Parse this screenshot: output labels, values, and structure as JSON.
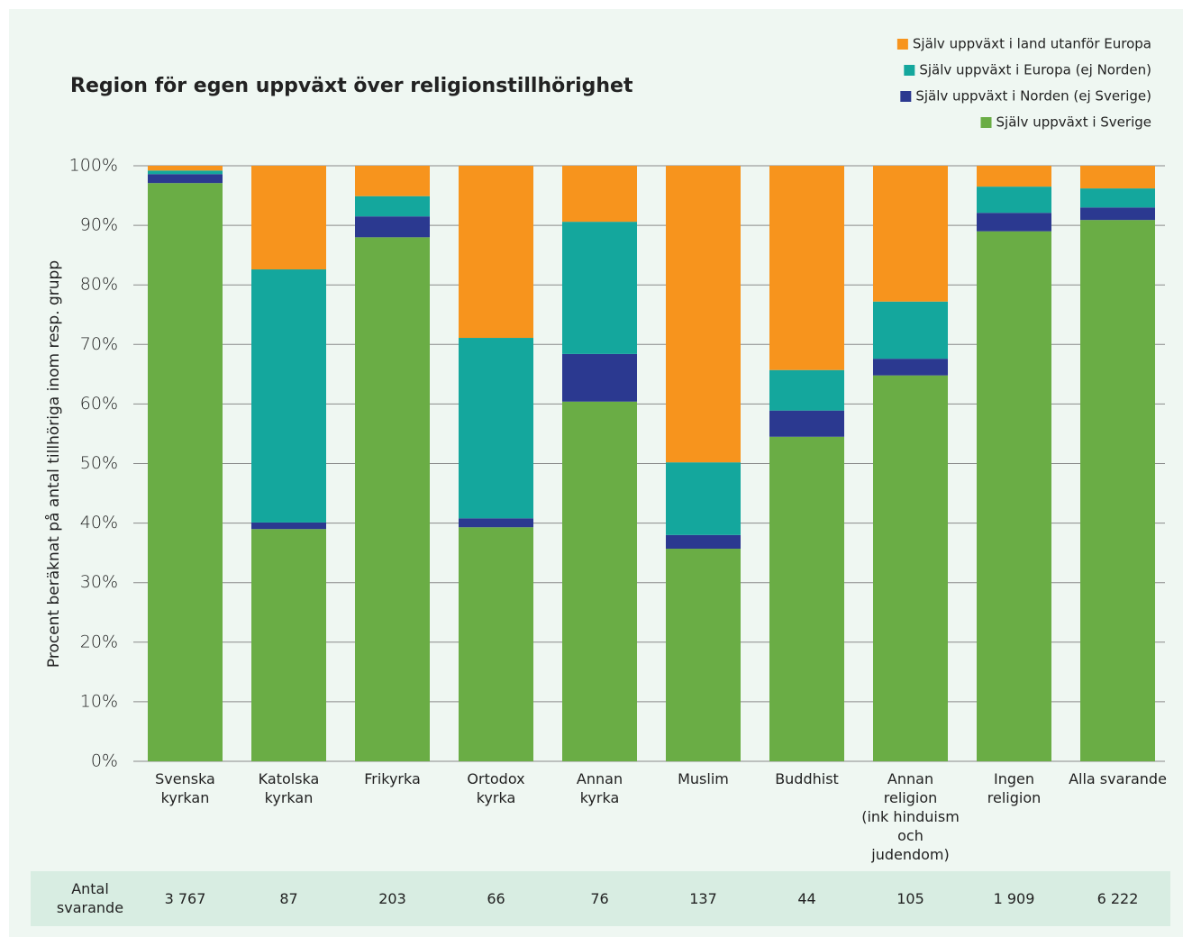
{
  "chart_data": {
    "type": "stacked_bar",
    "title": "Region för egen uppväxt över religionstillhörighet",
    "ylabel": "Procent beräknat på antal tillhöriga inom resp. grupp",
    "categories": [
      "Svenska\nkyrkan",
      "Katolska\nkyrkan",
      "Frikyrka",
      "Ortodox\nkyrka",
      "Annan\nkyrka",
      "Muslim",
      "Buddhist",
      "Annan\nreligion\n(ink hinduism\noch judendom)",
      "Ingen\nreligion",
      "Alla svarande"
    ],
    "series": [
      {
        "name": "Själv uppväxt i Sverige",
        "color": "#6aad45",
        "values": [
          97.1,
          39.0,
          88.0,
          39.3,
          60.4,
          35.7,
          54.5,
          64.8,
          89.0,
          90.9
        ]
      },
      {
        "name": "Själv uppväxt i Norden (ej Sverige)",
        "color": "#2b3990",
        "values": [
          1.5,
          1.1,
          3.5,
          1.5,
          8.0,
          2.3,
          4.4,
          2.8,
          3.1,
          2.1
        ]
      },
      {
        "name": "Själv uppväxt i Europa (ej Norden)",
        "color": "#14a79d",
        "values": [
          0.6,
          42.5,
          3.4,
          30.3,
          22.2,
          12.2,
          6.8,
          9.6,
          4.4,
          3.2
        ]
      },
      {
        "name": "Själv uppväxt i land utanför Europa",
        "color": "#f7941d",
        "values": [
          0.8,
          17.4,
          5.1,
          28.9,
          9.4,
          49.8,
          34.3,
          22.8,
          3.5,
          3.8
        ]
      }
    ],
    "ylim": [
      0,
      100
    ],
    "yticks": [
      {
        "value": 0,
        "label": "0%"
      },
      {
        "value": 10,
        "label": "10%"
      },
      {
        "value": 20,
        "label": "20%"
      },
      {
        "value": 30,
        "label": "30%"
      },
      {
        "value": 40,
        "label": "40%"
      },
      {
        "value": 50,
        "label": "50%"
      },
      {
        "value": 60,
        "label": "60%"
      },
      {
        "value": 70,
        "label": "70%"
      },
      {
        "value": 80,
        "label": "80%"
      },
      {
        "value": 90,
        "label": "90%"
      },
      {
        "value": 100,
        "label": "100%"
      }
    ],
    "grid": true,
    "legend": "top-right",
    "respondents": {
      "label": "Antal\nsvarande",
      "values": [
        3767,
        87,
        203,
        66,
        76,
        137,
        44,
        105,
        1909,
        6222
      ],
      "value_labels": [
        "3 767",
        "87",
        "203",
        "66",
        "76",
        "137",
        "44",
        "105",
        "1 909",
        "6 222"
      ]
    }
  }
}
